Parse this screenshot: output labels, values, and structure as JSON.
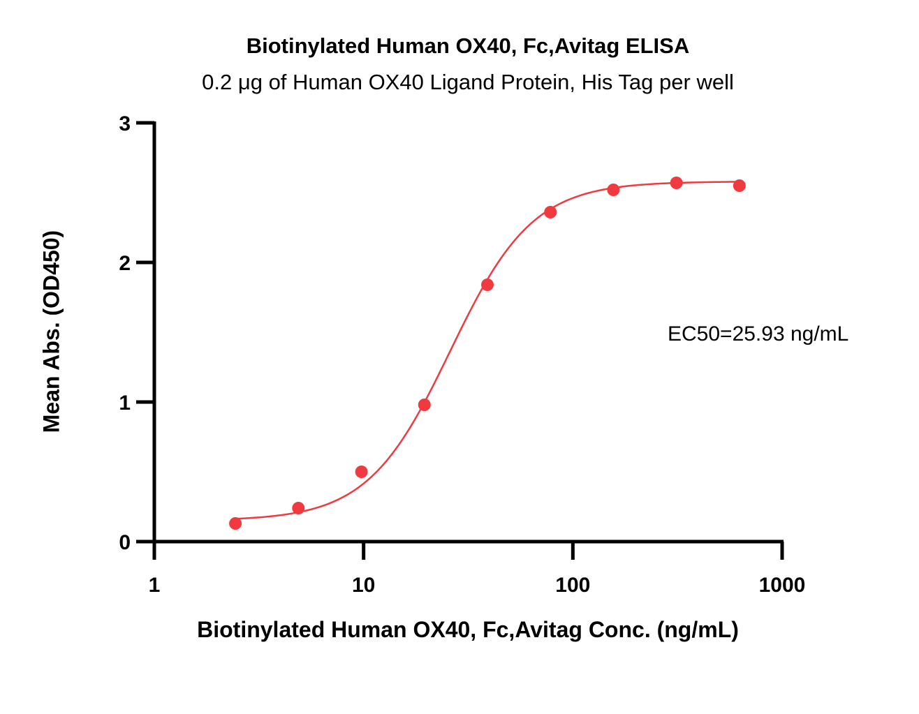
{
  "chart_data": {
    "type": "scatter",
    "title": "Biotinylated Human OX40, Fc,Avitag ELISA",
    "subtitle": "0.2 μg of Human OX40 Ligand Protein, His Tag per well",
    "xlabel": "Biotinylated Human OX40, Fc,Avitag Conc. (ng/mL)",
    "ylabel": "Mean Abs. (OD450)",
    "xscale": "log",
    "xlim": [
      1,
      1000
    ],
    "ylim": [
      0,
      3
    ],
    "xticks": [
      1,
      10,
      100,
      1000
    ],
    "xtick_labels": [
      "1",
      "10",
      "100",
      "1000"
    ],
    "yticks": [
      0,
      1,
      2,
      3
    ],
    "ytick_labels": [
      "0",
      "1",
      "2",
      "3"
    ],
    "grid": false,
    "annotation": "EC50=25.93 ng/mL",
    "color": "#ef3b3f",
    "points": {
      "x": [
        2.44,
        4.88,
        9.77,
        19.53,
        39.06,
        78.13,
        156.25,
        312.5,
        625
      ],
      "y": [
        0.13,
        0.24,
        0.5,
        0.98,
        1.84,
        2.36,
        2.52,
        2.57,
        2.55
      ]
    },
    "fit_curve": {
      "model": "4PL",
      "bottom": 0.15,
      "top": 2.58,
      "ec50": 25.93,
      "hill": 2.2,
      "x_range": [
        2.44,
        625
      ]
    }
  }
}
